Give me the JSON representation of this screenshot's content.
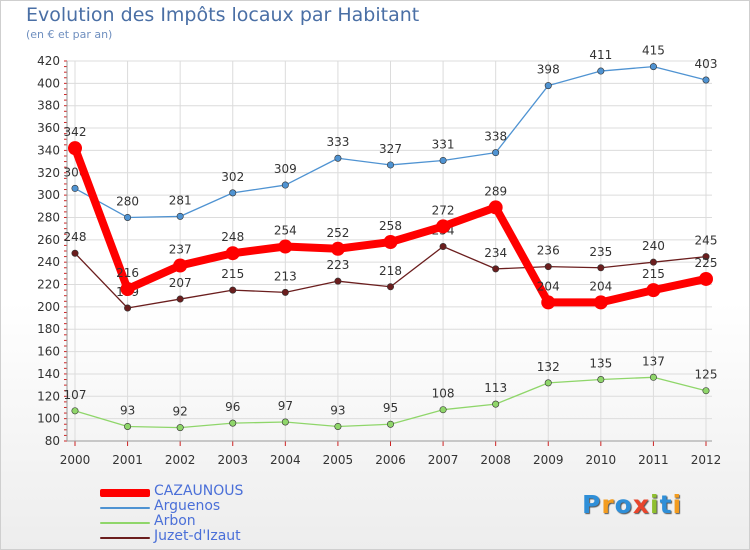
{
  "title": "Evolution des Impôts locaux par Habitant",
  "subtitle": "(en € et par an)",
  "chart_data": {
    "type": "line",
    "x": [
      "2000",
      "2001",
      "2002",
      "2003",
      "2004",
      "2005",
      "2006",
      "2007",
      "2008",
      "2009",
      "2010",
      "2011",
      "2012"
    ],
    "ylim": [
      80,
      420
    ],
    "yticks": [
      80,
      100,
      120,
      140,
      160,
      180,
      200,
      220,
      240,
      260,
      280,
      300,
      320,
      340,
      360,
      380,
      400,
      420
    ],
    "grid": true,
    "legend_position": "bottom-left",
    "series": [
      {
        "name": "CAZAUNOUS",
        "color": "#ff0000",
        "values": [
          342,
          216,
          237,
          248,
          254,
          252,
          258,
          272,
          289,
          204,
          204,
          215,
          225
        ]
      },
      {
        "name": "Arguenos",
        "color": "#4f93d2",
        "values": [
          306,
          280,
          281,
          302,
          309,
          333,
          327,
          331,
          338,
          398,
          411,
          415,
          403
        ]
      },
      {
        "name": "Arbon",
        "color": "#8fd66a",
        "values": [
          107,
          93,
          92,
          96,
          97,
          93,
          95,
          108,
          113,
          132,
          135,
          137,
          125
        ]
      },
      {
        "name": "Juzet-d'Izaut",
        "color": "#6b1e1e",
        "values": [
          248,
          199,
          207,
          215,
          213,
          223,
          218,
          254,
          234,
          236,
          235,
          240,
          245
        ]
      }
    ]
  },
  "logo": {
    "text": "Proxiti",
    "letters": [
      {
        "ch": "P",
        "color": "#2f8fd8"
      },
      {
        "ch": "r",
        "color": "#f39c1f"
      },
      {
        "ch": "o",
        "color": "#2f8fd8"
      },
      {
        "ch": "x",
        "color": "#e8452c"
      },
      {
        "ch": "i",
        "color": "#8fbf2f"
      },
      {
        "ch": "t",
        "color": "#2f8fd8"
      },
      {
        "ch": "i",
        "color": "#f39c1f"
      }
    ]
  }
}
